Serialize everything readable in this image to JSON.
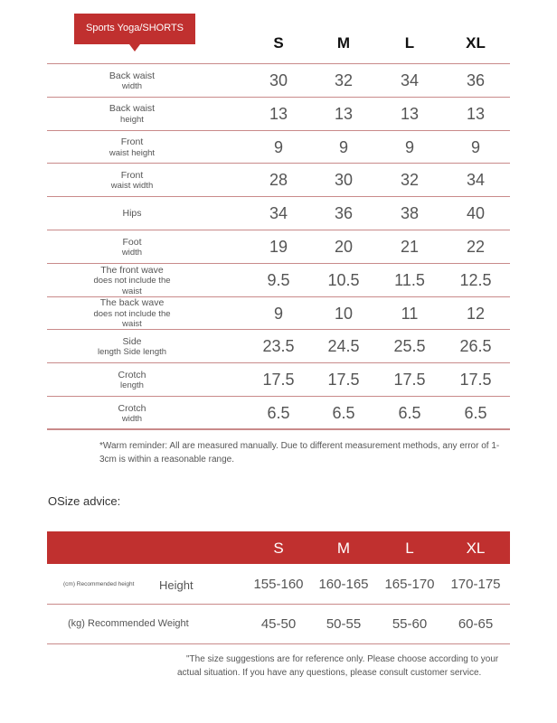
{
  "badge": "Sports Yoga/SHORTS",
  "sizes": [
    "S",
    "M",
    "L",
    "XL"
  ],
  "rows": [
    {
      "l1": "Back waist",
      "l2": "width",
      "v": [
        "30",
        "32",
        "34",
        "36"
      ]
    },
    {
      "l1": "Back waist",
      "l2": "height",
      "v": [
        "13",
        "13",
        "13",
        "13"
      ]
    },
    {
      "l1": "Front",
      "l2": "waist height",
      "v": [
        "9",
        "9",
        "9",
        "9"
      ]
    },
    {
      "l1": "Front",
      "l2": "waist width",
      "v": [
        "28",
        "30",
        "32",
        "34"
      ]
    },
    {
      "l1": "Hips",
      "l2": "",
      "v": [
        "34",
        "36",
        "38",
        "40"
      ]
    },
    {
      "l1": "Foot",
      "l2": "width",
      "v": [
        "19",
        "20",
        "21",
        "22"
      ]
    },
    {
      "l1": "The front wave",
      "l2": "does not include the waist",
      "v": [
        "9.5",
        "10.5",
        "11.5",
        "12.5"
      ]
    },
    {
      "l1": "The back wave",
      "l2": "does not include the waist",
      "v": [
        "9",
        "10",
        "11",
        "12"
      ]
    },
    {
      "l1": "Side",
      "l2": "length Side length",
      "v": [
        "23.5",
        "24.5",
        "25.5",
        "26.5"
      ]
    },
    {
      "l1": "Crotch",
      "l2": "length",
      "v": [
        "17.5",
        "17.5",
        "17.5",
        "17.5"
      ]
    },
    {
      "l1": "Crotch",
      "l2": "width",
      "v": [
        "6.5",
        "6.5",
        "6.5",
        "6.5"
      ]
    }
  ],
  "reminder": "*Warm reminder: All are measured manually. Due to different measurement methods, any error of 1-3cm is within a reasonable range.",
  "advice_title": "OSize advice:",
  "advice": {
    "height_small": "(cm) Recommended height",
    "height_label": "Height",
    "height": [
      "155-160",
      "160-165",
      "165-170",
      "170-175"
    ],
    "weight_label": "(kg) Recommended Weight",
    "weight": [
      "45-50",
      "50-55",
      "55-60",
      "60-65"
    ]
  },
  "footnote": "\"The size suggestions are for reference only. Please choose according to your actual situation. If you have any questions, please consult customer service.",
  "colors": {
    "accent": "#c0302f",
    "line": "#c98a8a"
  }
}
